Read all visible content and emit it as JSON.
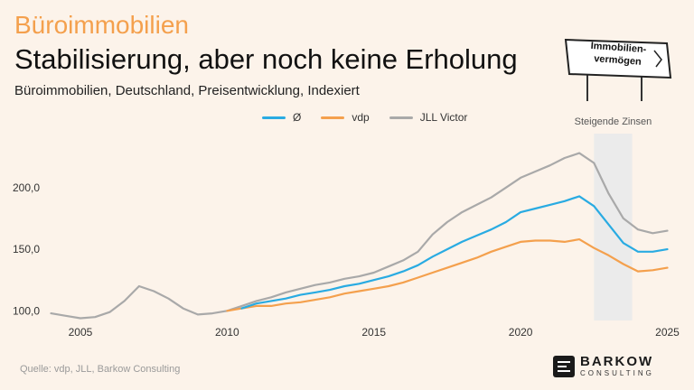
{
  "header": {
    "kicker": "Büroimmobilien",
    "title": "Stabilisierung, aber noch keine Erholung",
    "subtitle": "Büroimmobilien, Deutschland, Preisentwicklung, Indexiert"
  },
  "badge": {
    "line1": "Immobilien-",
    "line2": "vermögen"
  },
  "footer": {
    "source": "Quelle: vdp, JLL, Barkow Consulting",
    "brand": "BARKOW",
    "brand_sub": "CONSULTING"
  },
  "colors": {
    "avg": "#29abe2",
    "vdp": "#f4a04d",
    "jll": "#a9a9a9",
    "shade": "#ebebeb"
  },
  "chart_data": {
    "type": "line",
    "title": "Stabilisierung, aber noch keine Erholung",
    "xlim": [
      2003.8,
      2025.2
    ],
    "ylim": [
      90,
      235
    ],
    "x_ticks": [
      2005,
      2010,
      2015,
      2020,
      2025
    ],
    "y_ticks": [
      100,
      150,
      200
    ],
    "y_tick_labels": [
      "100,0",
      "150,0",
      "200,0"
    ],
    "annotation": {
      "label": "Steigende Zinsen",
      "x_start": 2022.5,
      "x_end": 2023.8
    },
    "series": [
      {
        "name": "Ø",
        "x": [
          2010.5,
          2011,
          2011.5,
          2012,
          2012.5,
          2013,
          2013.5,
          2014,
          2014.5,
          2015,
          2015.5,
          2016,
          2016.5,
          2017,
          2017.5,
          2018,
          2018.5,
          2019,
          2019.5,
          2020,
          2020.5,
          2021,
          2021.5,
          2022,
          2022.5,
          2023,
          2023.5,
          2024,
          2024.5,
          2025
        ],
        "values": [
          102,
          106,
          108,
          110,
          113,
          115,
          117,
          120,
          122,
          125,
          128,
          132,
          137,
          144,
          150,
          156,
          161,
          166,
          172,
          180,
          183,
          186,
          189,
          193,
          185,
          170,
          155,
          148,
          148,
          150
        ]
      },
      {
        "name": "vdp",
        "x": [
          2010,
          2010.5,
          2011,
          2011.5,
          2012,
          2012.5,
          2013,
          2013.5,
          2014,
          2014.5,
          2015,
          2015.5,
          2016,
          2016.5,
          2017,
          2017.5,
          2018,
          2018.5,
          2019,
          2019.5,
          2020,
          2020.5,
          2021,
          2021.5,
          2022,
          2022.5,
          2023,
          2023.5,
          2024,
          2024.5,
          2025
        ],
        "values": [
          100,
          102,
          104,
          104,
          106,
          107,
          109,
          111,
          114,
          116,
          118,
          120,
          123,
          127,
          131,
          135,
          139,
          143,
          148,
          152,
          156,
          157,
          157,
          156,
          158,
          151,
          145,
          138,
          132,
          133,
          135
        ]
      },
      {
        "name": "JLL Victor",
        "x": [
          2004,
          2004.5,
          2005,
          2005.5,
          2006,
          2006.5,
          2007,
          2007.5,
          2008,
          2008.5,
          2009,
          2009.5,
          2010,
          2010.5,
          2011,
          2011.5,
          2012,
          2012.5,
          2013,
          2013.5,
          2014,
          2014.5,
          2015,
          2015.5,
          2016,
          2016.5,
          2017,
          2017.5,
          2018,
          2018.5,
          2019,
          2019.5,
          2020,
          2020.5,
          2021,
          2021.5,
          2022,
          2022.5,
          2023,
          2023.5,
          2024,
          2024.5,
          2025
        ],
        "values": [
          98,
          96,
          94,
          95,
          99,
          108,
          120,
          116,
          110,
          102,
          97,
          98,
          100,
          104,
          108,
          111,
          115,
          118,
          121,
          123,
          126,
          128,
          131,
          136,
          141,
          148,
          162,
          172,
          180,
          186,
          192,
          200,
          208,
          213,
          218,
          224,
          228,
          220,
          195,
          175,
          166,
          163,
          165
        ]
      }
    ]
  }
}
